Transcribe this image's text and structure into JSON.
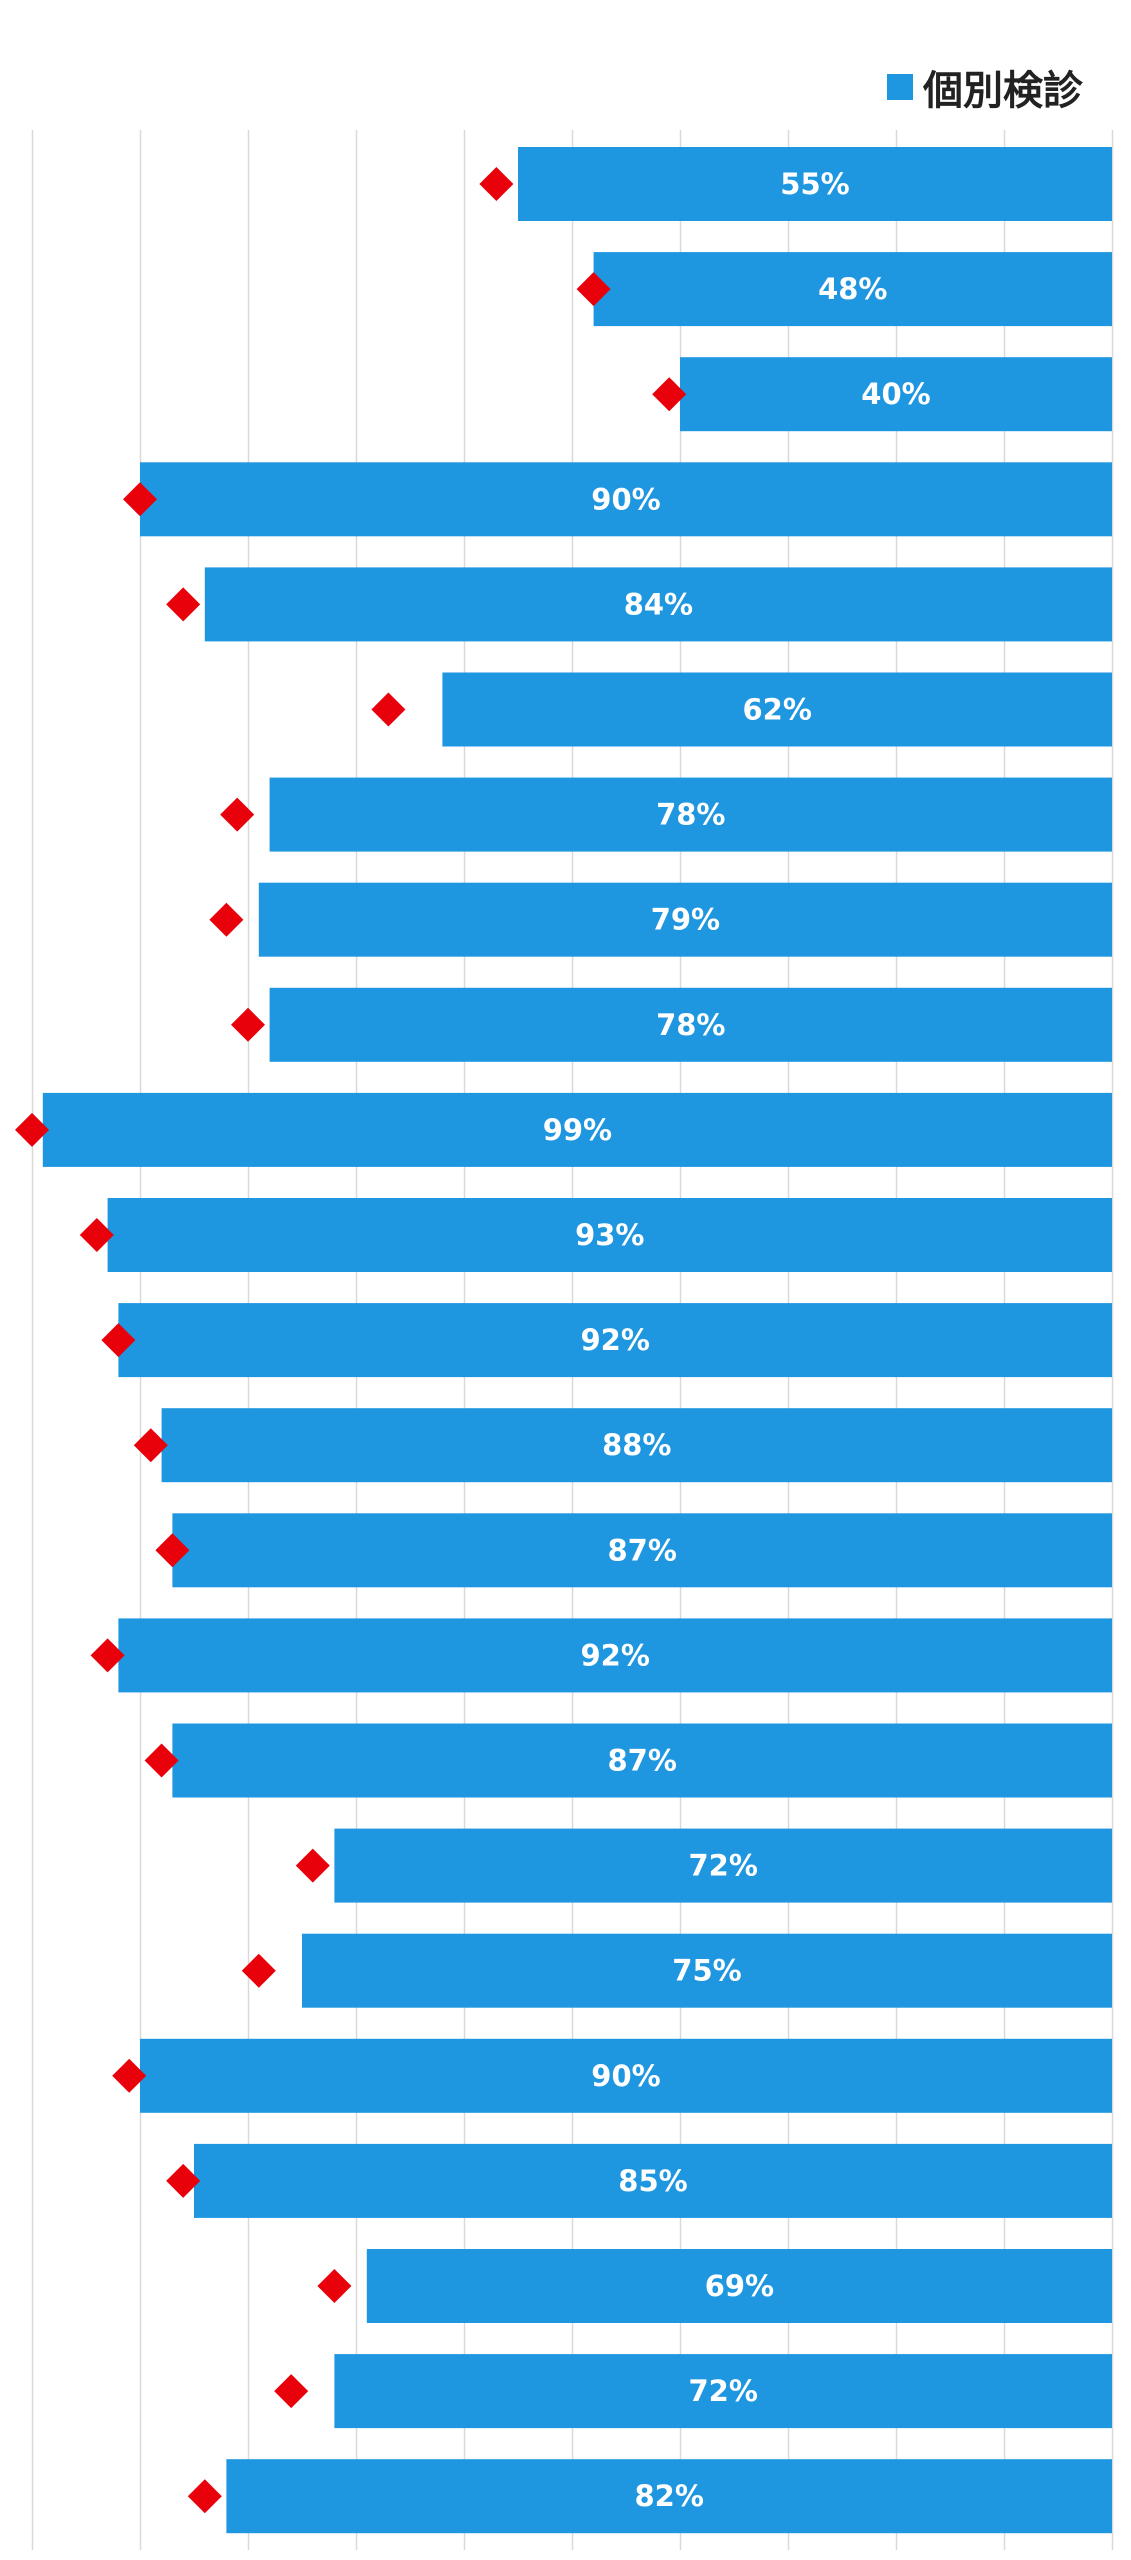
{
  "chart_data": {
    "type": "bar",
    "orientation": "horizontal",
    "direction": "right-to-left",
    "series": [
      {
        "name": "個別検診",
        "color": "#1e96e0",
        "values": [
          55,
          48,
          40,
          90,
          84,
          62,
          78,
          79,
          78,
          99,
          93,
          92,
          88,
          87,
          92,
          87,
          72,
          75,
          90,
          85,
          69,
          72,
          82
        ],
        "labels": [
          "55%",
          "48%",
          "40%",
          "90%",
          "84%",
          "62%",
          "78%",
          "79%",
          "78%",
          "99%",
          "93%",
          "92%",
          "88%",
          "87%",
          "92%",
          "87%",
          "72%",
          "75%",
          "90%",
          "85%",
          "69%",
          "72%",
          "82%"
        ]
      },
      {
        "marker": "diamond",
        "color": "#e8000b",
        "values": [
          57,
          48,
          41,
          90,
          86,
          67,
          81,
          82,
          80,
          100,
          94,
          92,
          89,
          87,
          93,
          88,
          74,
          79,
          91,
          86,
          72,
          76,
          84
        ]
      }
    ],
    "xlim": [
      0,
      100
    ],
    "grid": true,
    "legend": "top-right"
  }
}
